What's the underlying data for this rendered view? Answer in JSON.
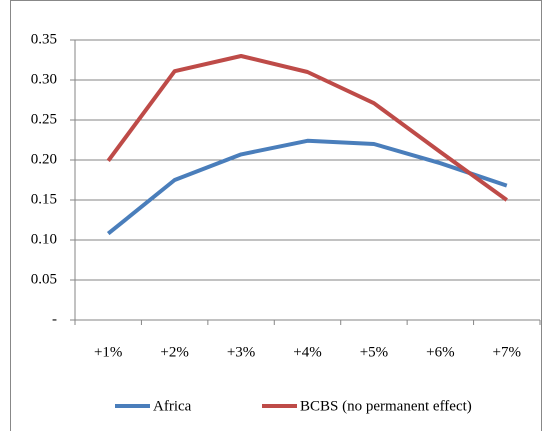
{
  "chart_data": {
    "type": "line",
    "categories": [
      "+1%",
      "+2%",
      "+3%",
      "+4%",
      "+5%",
      "+6%",
      "+7%"
    ],
    "series": [
      {
        "name": "Africa",
        "color": "#4a7ebb",
        "values": [
          0.108,
          0.175,
          0.207,
          0.224,
          0.22,
          0.196,
          0.168
        ]
      },
      {
        "name": "BCBS (no permanent effect)",
        "color": "#be4b48",
        "values": [
          0.199,
          0.311,
          0.33,
          0.31,
          0.271,
          0.21,
          0.15
        ]
      }
    ],
    "ylim": [
      0,
      0.35
    ],
    "yticks": [
      {
        "value": 0,
        "label": "-"
      },
      0.05,
      {
        "value": 0.1,
        "label": "0.10"
      },
      0.15,
      {
        "value": 0.2,
        "label": "0.20"
      },
      0.25,
      {
        "value": 0.3,
        "label": "0.30"
      },
      0.35
    ],
    "grid": true,
    "legend": "bottom"
  }
}
